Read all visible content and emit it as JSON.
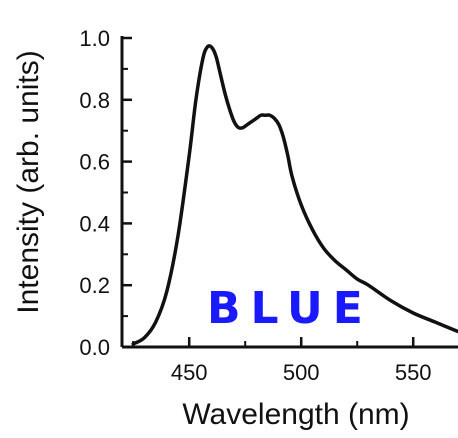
{
  "chart_data": {
    "type": "line",
    "xlabel": "Wavelength (nm)",
    "ylabel": "Intensity (arb. units)",
    "xlim": [
      420,
      570
    ],
    "ylim": [
      0,
      1.0
    ],
    "x_ticks": [
      450,
      500,
      550
    ],
    "x_tick_labels": [
      "450",
      "500",
      "550"
    ],
    "y_ticks": [
      0.0,
      0.2,
      0.4,
      0.6,
      0.8,
      1.0
    ],
    "y_tick_labels": [
      "0.0",
      "0.2",
      "0.4",
      "0.6",
      "0.8",
      "1.0"
    ],
    "grid": false,
    "annotation": {
      "text": "BLUE",
      "color": "#1a1aff"
    },
    "line_color": "#111111",
    "series": [
      {
        "x": [
          425,
          430,
          435,
          440,
          445,
          450,
          453,
          456,
          458,
          460,
          462,
          464,
          466,
          468,
          470,
          472,
          474,
          476,
          478,
          480,
          482,
          484,
          486,
          488,
          490,
          492,
          494,
          496,
          500,
          505,
          510,
          515,
          520,
          525,
          530,
          540,
          550,
          560,
          570
        ],
        "y": [
          0.01,
          0.03,
          0.08,
          0.18,
          0.36,
          0.62,
          0.8,
          0.93,
          0.97,
          0.97,
          0.94,
          0.88,
          0.82,
          0.77,
          0.73,
          0.71,
          0.71,
          0.72,
          0.73,
          0.74,
          0.75,
          0.75,
          0.75,
          0.74,
          0.72,
          0.68,
          0.62,
          0.55,
          0.46,
          0.38,
          0.32,
          0.28,
          0.25,
          0.22,
          0.2,
          0.15,
          0.11,
          0.08,
          0.05
        ]
      }
    ]
  }
}
